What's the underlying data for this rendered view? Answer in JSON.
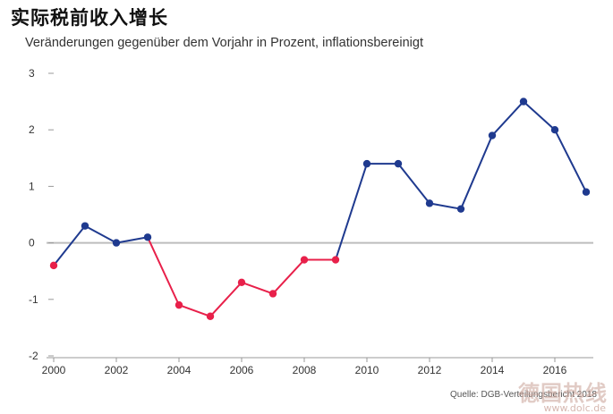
{
  "title": "实际税前收入增长",
  "subtitle": "Veränderungen gegenüber dem Vorjahr in Prozent, inflationsbereinigt",
  "source": "Quelle: DGB-Verteilungsbericht 2018",
  "watermark": "德国热线",
  "watermark_sub": "www.dolc.de",
  "colors": {
    "positive": "#1f3a8f",
    "negative": "#e8204a",
    "zero_line": "#bdbdbd",
    "axis": "#999999"
  },
  "chart_data": {
    "type": "line",
    "title": "实际税前收入增长",
    "subtitle": "Veränderungen gegenüber dem Vorjahr in Prozent, inflationsbereinigt",
    "xlabel": "",
    "ylabel": "",
    "x": [
      2000,
      2001,
      2002,
      2003,
      2004,
      2005,
      2006,
      2007,
      2008,
      2009,
      2010,
      2011,
      2012,
      2013,
      2014,
      2015,
      2016,
      2017
    ],
    "y": [
      -0.4,
      0.3,
      0.0,
      0.1,
      -1.1,
      -1.3,
      -0.7,
      -0.9,
      -0.3,
      -0.3,
      1.4,
      1.4,
      0.7,
      0.6,
      1.9,
      2.5,
      2.0,
      0.9
    ],
    "ylim": [
      -2,
      3
    ],
    "xlim": [
      2000,
      2017
    ],
    "yticks": [
      -2,
      -1,
      0,
      1,
      2,
      3
    ],
    "xticks": [
      2000,
      2002,
      2004,
      2006,
      2008,
      2010,
      2012,
      2014,
      2016
    ],
    "grid": false,
    "legend": "none",
    "color_rule": "segments below zero drawn in negative color, otherwise positive color"
  }
}
